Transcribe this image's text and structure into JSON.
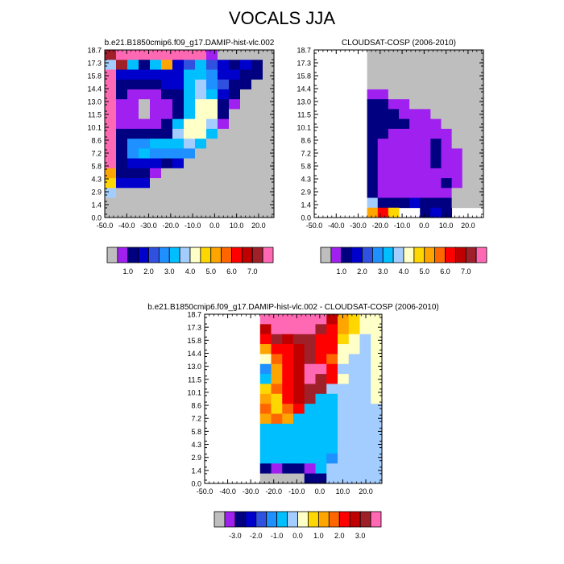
{
  "page": {
    "title": "VOCALS JJA"
  },
  "chart_data": [
    {
      "type": "heatmap",
      "title": "b.e21.B1850cmip6.f09_g17.DAMIP-hist-vlc.002",
      "xlabel": "",
      "ylabel": "",
      "x_ticks": [
        "-50.0",
        "-40.0",
        "-30.0",
        "-20.0",
        "-10.0",
        "0.0",
        "10.0",
        "20.0"
      ],
      "y_ticks": [
        "18.7",
        "17.3",
        "15.8",
        "14.4",
        "13.0",
        "11.5",
        "10.1",
        "8.6",
        "7.2",
        "5.8",
        "4.3",
        "2.9",
        "1.4",
        "0.0"
      ],
      "colorbar_labels": [
        "1.0",
        "2.0",
        "3.0",
        "4.0",
        "5.0",
        "6.0",
        "7.0"
      ],
      "colorbar_colors": [
        "#bebebe",
        "#a020f0",
        "#000080",
        "#0000cd",
        "#3050e0",
        "#1e90ff",
        "#00bfff",
        "#a3cdfe",
        "#ffffc8",
        "#ffd700",
        "#ffa500",
        "#ff6600",
        "#ff0000",
        "#c00000",
        "#a0202a",
        "#ff69b4"
      ],
      "rows": [
        [
          14,
          15,
          15,
          15,
          15,
          15,
          15,
          15,
          15,
          1,
          0,
          0,
          0,
          0,
          0
        ],
        [
          7,
          14,
          6,
          2,
          6,
          10,
          3,
          4,
          6,
          4,
          3,
          2,
          3,
          2,
          0
        ],
        [
          15,
          3,
          3,
          3,
          3,
          3,
          3,
          6,
          6,
          5,
          3,
          3,
          2,
          2,
          0
        ],
        [
          15,
          2,
          2,
          2,
          2,
          3,
          3,
          6,
          7,
          5,
          4,
          2,
          2,
          0,
          0
        ],
        [
          15,
          2,
          1,
          1,
          1,
          2,
          2,
          6,
          7,
          6,
          3,
          2,
          0,
          0,
          0
        ],
        [
          15,
          1,
          1,
          0,
          1,
          1,
          2,
          6,
          8,
          8,
          2,
          1,
          0,
          0,
          0
        ],
        [
          15,
          1,
          1,
          0,
          1,
          1,
          2,
          6,
          8,
          8,
          2,
          0,
          0,
          0,
          0
        ],
        [
          15,
          1,
          1,
          1,
          1,
          2,
          6,
          8,
          8,
          7,
          1,
          0,
          0,
          0,
          0
        ],
        [
          15,
          2,
          2,
          2,
          2,
          2,
          7,
          8,
          8,
          6,
          0,
          0,
          0,
          0,
          0
        ],
        [
          15,
          2,
          5,
          5,
          6,
          6,
          6,
          7,
          6,
          0,
          0,
          0,
          0,
          0,
          0
        ],
        [
          15,
          2,
          5,
          6,
          5,
          5,
          5,
          5,
          0,
          0,
          0,
          0,
          0,
          0,
          0
        ],
        [
          15,
          2,
          3,
          3,
          3,
          2,
          3,
          0,
          0,
          0,
          0,
          0,
          0,
          0,
          0
        ],
        [
          10,
          2,
          2,
          2,
          1,
          0,
          0,
          0,
          0,
          0,
          0,
          0,
          0,
          0,
          0
        ],
        [
          9,
          3,
          3,
          3,
          0,
          0,
          0,
          0,
          0,
          0,
          0,
          0,
          0,
          0,
          0
        ],
        [
          7,
          0,
          0,
          0,
          0,
          0,
          0,
          0,
          0,
          0,
          0,
          0,
          0,
          0,
          0
        ],
        [
          0,
          0,
          0,
          0,
          0,
          0,
          0,
          0,
          0,
          0,
          0,
          0,
          0,
          0,
          0
        ],
        [
          0,
          0,
          0,
          0,
          0,
          0,
          0,
          0,
          0,
          0,
          0,
          0,
          0,
          0,
          0
        ]
      ]
    },
    {
      "type": "heatmap",
      "title": "CLOUDSAT-COSP (2006-2010)",
      "xlabel": "",
      "ylabel": "",
      "x_ticks": [
        "-50.0",
        "-40.0",
        "-30.0",
        "-20.0",
        "-10.0",
        "0.0",
        "10.0",
        "20.0"
      ],
      "y_ticks": [
        "18.7",
        "17.3",
        "15.8",
        "14.4",
        "13.0",
        "11.5",
        "10.1",
        "8.6",
        "7.2",
        "5.8",
        "4.3",
        "2.9",
        "1.4",
        "0.0"
      ],
      "colorbar_labels": [
        "1.0",
        "2.0",
        "3.0",
        "4.0",
        "5.0",
        "6.0",
        "7.0"
      ],
      "colorbar_colors": [
        "#bebebe",
        "#a020f0",
        "#000080",
        "#0000cd",
        "#3050e0",
        "#1e90ff",
        "#00bfff",
        "#a3cdfe",
        "#ffffc8",
        "#ffd700",
        "#ffa500",
        "#ff6600",
        "#ff0000",
        "#c00000",
        "#a0202a",
        "#ff69b4"
      ],
      "rows": [
        [
          -1,
          -1,
          -1,
          -1,
          -1,
          0,
          0,
          0,
          0,
          0,
          0,
          0,
          0,
          0,
          0,
          0
        ],
        [
          -1,
          -1,
          -1,
          -1,
          -1,
          0,
          0,
          0,
          0,
          0,
          0,
          0,
          0,
          0,
          0,
          0
        ],
        [
          -1,
          -1,
          -1,
          -1,
          -1,
          0,
          0,
          0,
          0,
          0,
          0,
          0,
          0,
          0,
          0,
          0
        ],
        [
          -1,
          -1,
          -1,
          -1,
          -1,
          0,
          0,
          0,
          0,
          0,
          0,
          0,
          0,
          0,
          0,
          0
        ],
        [
          -1,
          -1,
          -1,
          -1,
          -1,
          1,
          1,
          0,
          0,
          0,
          0,
          0,
          0,
          0,
          0,
          0
        ],
        [
          -1,
          -1,
          -1,
          -1,
          -1,
          2,
          2,
          1,
          1,
          0,
          0,
          0,
          0,
          0,
          0,
          0
        ],
        [
          -1,
          -1,
          -1,
          -1,
          -1,
          2,
          2,
          2,
          1,
          1,
          1,
          0,
          0,
          0,
          0,
          0
        ],
        [
          -1,
          -1,
          -1,
          -1,
          -1,
          2,
          2,
          2,
          2,
          1,
          1,
          1,
          0,
          0,
          0,
          0
        ],
        [
          -1,
          -1,
          -1,
          -1,
          -1,
          2,
          2,
          1,
          1,
          1,
          1,
          1,
          1,
          0,
          0,
          0
        ],
        [
          -1,
          -1,
          -1,
          -1,
          -1,
          2,
          1,
          1,
          1,
          1,
          1,
          2,
          1,
          0,
          0,
          0
        ],
        [
          -1,
          -1,
          -1,
          -1,
          -1,
          2,
          1,
          1,
          1,
          1,
          1,
          2,
          1,
          1,
          0,
          0
        ],
        [
          -1,
          -1,
          -1,
          -1,
          -1,
          2,
          1,
          1,
          1,
          1,
          1,
          2,
          1,
          1,
          0,
          0
        ],
        [
          -1,
          -1,
          -1,
          -1,
          -1,
          2,
          1,
          1,
          1,
          1,
          1,
          1,
          1,
          1,
          0,
          0
        ],
        [
          -1,
          -1,
          -1,
          -1,
          -1,
          2,
          1,
          1,
          1,
          1,
          1,
          1,
          2,
          1,
          0,
          0
        ],
        [
          -1,
          -1,
          -1,
          -1,
          -1,
          2,
          1,
          1,
          1,
          1,
          1,
          1,
          1,
          0,
          0,
          0
        ],
        [
          -1,
          -1,
          -1,
          -1,
          -1,
          7,
          2,
          2,
          2,
          3,
          2,
          2,
          2,
          0,
          0,
          0
        ],
        [
          -1,
          -1,
          -1,
          -1,
          -1,
          10,
          12,
          9,
          -1,
          -1,
          2,
          3,
          2,
          -1,
          -1,
          -1
        ]
      ]
    },
    {
      "type": "heatmap",
      "title": "b.e21.B1850cmip6.f09_g17.DAMIP-hist-vlc.002 - CLOUDSAT-COSP (2006-2010)",
      "xlabel": "",
      "ylabel": "",
      "x_ticks": [
        "-50.0",
        "-40.0",
        "-30.0",
        "-20.0",
        "-10.0",
        "0.0",
        "10.0",
        "20.0"
      ],
      "y_ticks": [
        "18.7",
        "17.3",
        "15.8",
        "14.4",
        "13.0",
        "11.5",
        "10.1",
        "8.6",
        "7.2",
        "5.8",
        "4.3",
        "2.9",
        "1.4",
        "0.0"
      ],
      "colorbar_labels": [
        "-3.0",
        "-2.0",
        "-1.0",
        "0.0",
        "1.0",
        "2.0",
        "3.0"
      ],
      "colorbar_colors": [
        "#bebebe",
        "#a020f0",
        "#000080",
        "#0000cd",
        "#3050e0",
        "#1e90ff",
        "#00bfff",
        "#a3cdfe",
        "#ffffc8",
        "#ffd700",
        "#ffa500",
        "#ff6600",
        "#ff0000",
        "#c00000",
        "#a0202a",
        "#ff69b4"
      ],
      "rows": [
        [
          -1,
          -1,
          -1,
          -1,
          -1,
          15,
          15,
          15,
          15,
          15,
          15,
          13,
          10,
          9,
          8,
          8
        ],
        [
          -1,
          -1,
          -1,
          -1,
          -1,
          13,
          15,
          15,
          15,
          15,
          14,
          12,
          10,
          9,
          8,
          8
        ],
        [
          -1,
          -1,
          -1,
          -1,
          -1,
          12,
          14,
          13,
          14,
          14,
          12,
          12,
          9,
          8,
          7,
          8
        ],
        [
          -1,
          -1,
          -1,
          -1,
          -1,
          10,
          12,
          12,
          13,
          14,
          12,
          12,
          8,
          8,
          7,
          8
        ],
        [
          -1,
          -1,
          -1,
          -1,
          -1,
          8,
          11,
          12,
          13,
          14,
          12,
          11,
          8,
          7,
          7,
          8
        ],
        [
          -1,
          -1,
          -1,
          -1,
          -1,
          5,
          10,
          12,
          13,
          15,
          15,
          12,
          7,
          7,
          7,
          8
        ],
        [
          -1,
          -1,
          -1,
          -1,
          -1,
          6,
          10,
          12,
          13,
          15,
          14,
          12,
          8,
          7,
          7,
          8
        ],
        [
          -1,
          -1,
          -1,
          -1,
          -1,
          9,
          11,
          12,
          13,
          14,
          14,
          7,
          7,
          7,
          7,
          8
        ],
        [
          -1,
          -1,
          -1,
          -1,
          -1,
          10,
          9,
          12,
          13,
          14,
          6,
          6,
          7,
          7,
          7,
          8
        ],
        [
          -1,
          -1,
          -1,
          -1,
          -1,
          11,
          9,
          11,
          12,
          6,
          6,
          6,
          7,
          7,
          7,
          7
        ],
        [
          -1,
          -1,
          -1,
          -1,
          -1,
          10,
          11,
          10,
          6,
          6,
          6,
          6,
          7,
          7,
          7,
          7
        ],
        [
          -1,
          -1,
          -1,
          -1,
          -1,
          6,
          6,
          6,
          6,
          6,
          6,
          6,
          7,
          7,
          7,
          7
        ],
        [
          -1,
          -1,
          -1,
          -1,
          -1,
          6,
          6,
          6,
          6,
          6,
          6,
          6,
          7,
          7,
          7,
          7
        ],
        [
          -1,
          -1,
          -1,
          -1,
          -1,
          6,
          6,
          6,
          6,
          6,
          6,
          6,
          7,
          7,
          7,
          7
        ],
        [
          -1,
          -1,
          -1,
          -1,
          -1,
          6,
          6,
          6,
          6,
          6,
          6,
          5,
          7,
          7,
          7,
          7
        ],
        [
          -1,
          -1,
          -1,
          -1,
          -1,
          2,
          1,
          2,
          2,
          1,
          6,
          7,
          7,
          7,
          7,
          7
        ],
        [
          -1,
          -1,
          -1,
          -1,
          -1,
          0,
          0,
          0,
          0,
          2,
          2,
          7,
          7,
          7,
          7,
          7
        ]
      ]
    }
  ]
}
